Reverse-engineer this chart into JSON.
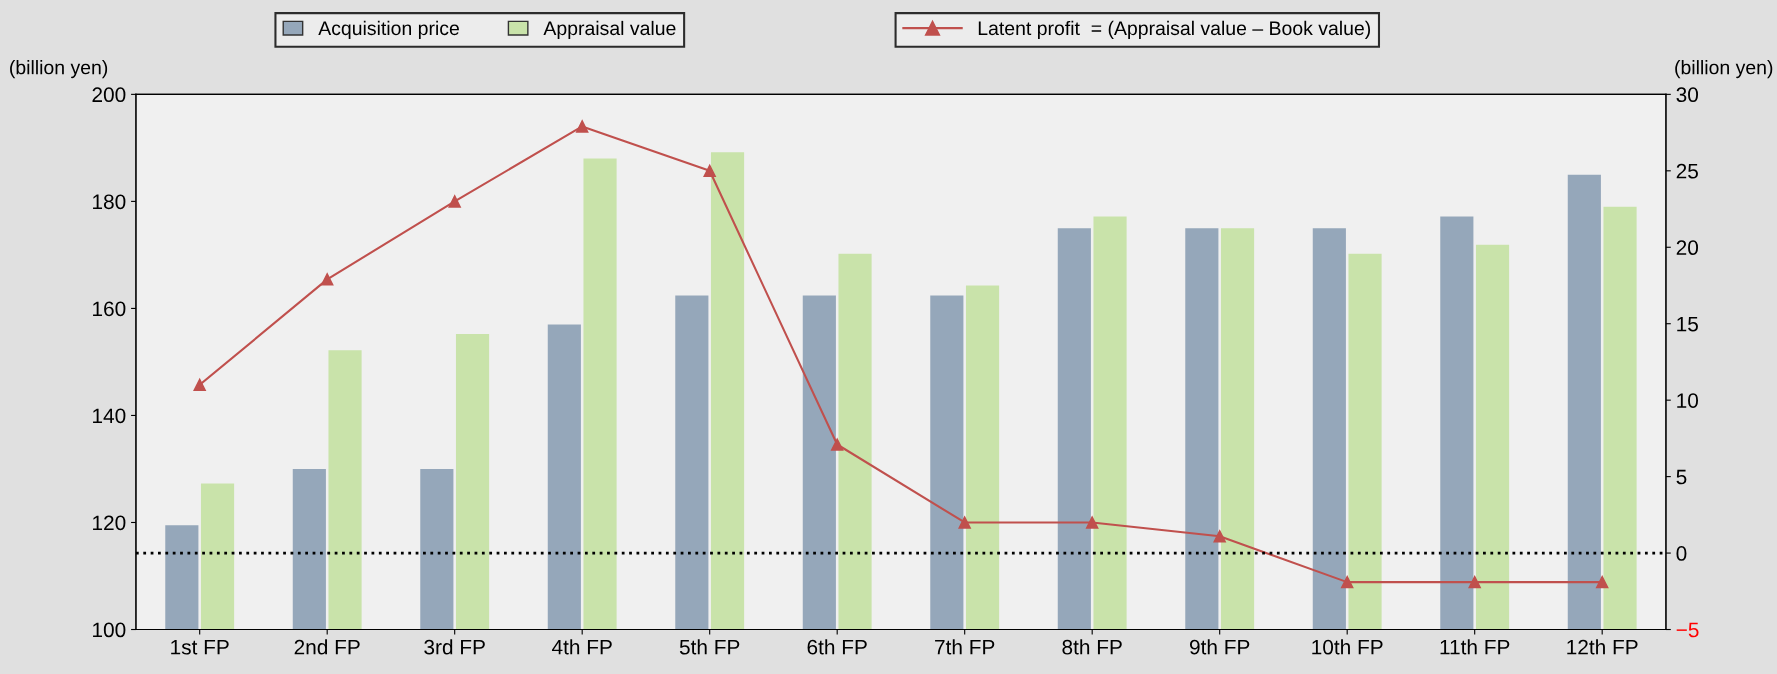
{
  "chart_data": {
    "type": "bar",
    "categories": [
      "1st FP",
      "2nd FP",
      "3rd FP",
      "4th FP",
      "5th FP",
      "6th FP",
      "7th FP",
      "8th FP",
      "9th FP",
      "10th FP",
      "11th FP",
      "12th FP"
    ],
    "series": [
      {
        "name": "Acquisition price",
        "color": "#95a7ba",
        "values": [
          119.5,
          130,
          130,
          157,
          162.4,
          162.4,
          162.4,
          175,
          175,
          175,
          177.2,
          185
        ]
      },
      {
        "name": "Appraisal value",
        "color": "#c9e3aa",
        "values": [
          127.3,
          152.2,
          155.2,
          188,
          189.2,
          170.2,
          164.3,
          177.2,
          175,
          170.2,
          171.9,
          179
        ]
      },
      {
        "name": "Latent profit  = (Appraisal value – Book value)",
        "type": "line",
        "axis": "y2",
        "color": "#c0504d",
        "marker": "triangle",
        "values": [
          11,
          17.9,
          23,
          27.9,
          25,
          7.1,
          2,
          2,
          1.1,
          -1.9,
          -1.9,
          -1.9
        ]
      }
    ],
    "ylabel": "(billion yen)",
    "y2label": "(billion yen)",
    "ylim": [
      100,
      200
    ],
    "yticks": [
      100,
      120,
      140,
      160,
      180,
      200
    ],
    "y2lim": [
      -5,
      30
    ],
    "y2ticks": [
      {
        "value": -5,
        "label": "−5"
      },
      0,
      5,
      10,
      15,
      20,
      25,
      30
    ],
    "ref_lines": [
      {
        "axis": "y2",
        "value": 0,
        "color": "#000000",
        "line_style": "dotted"
      }
    ],
    "legend": "top",
    "grid": false
  }
}
